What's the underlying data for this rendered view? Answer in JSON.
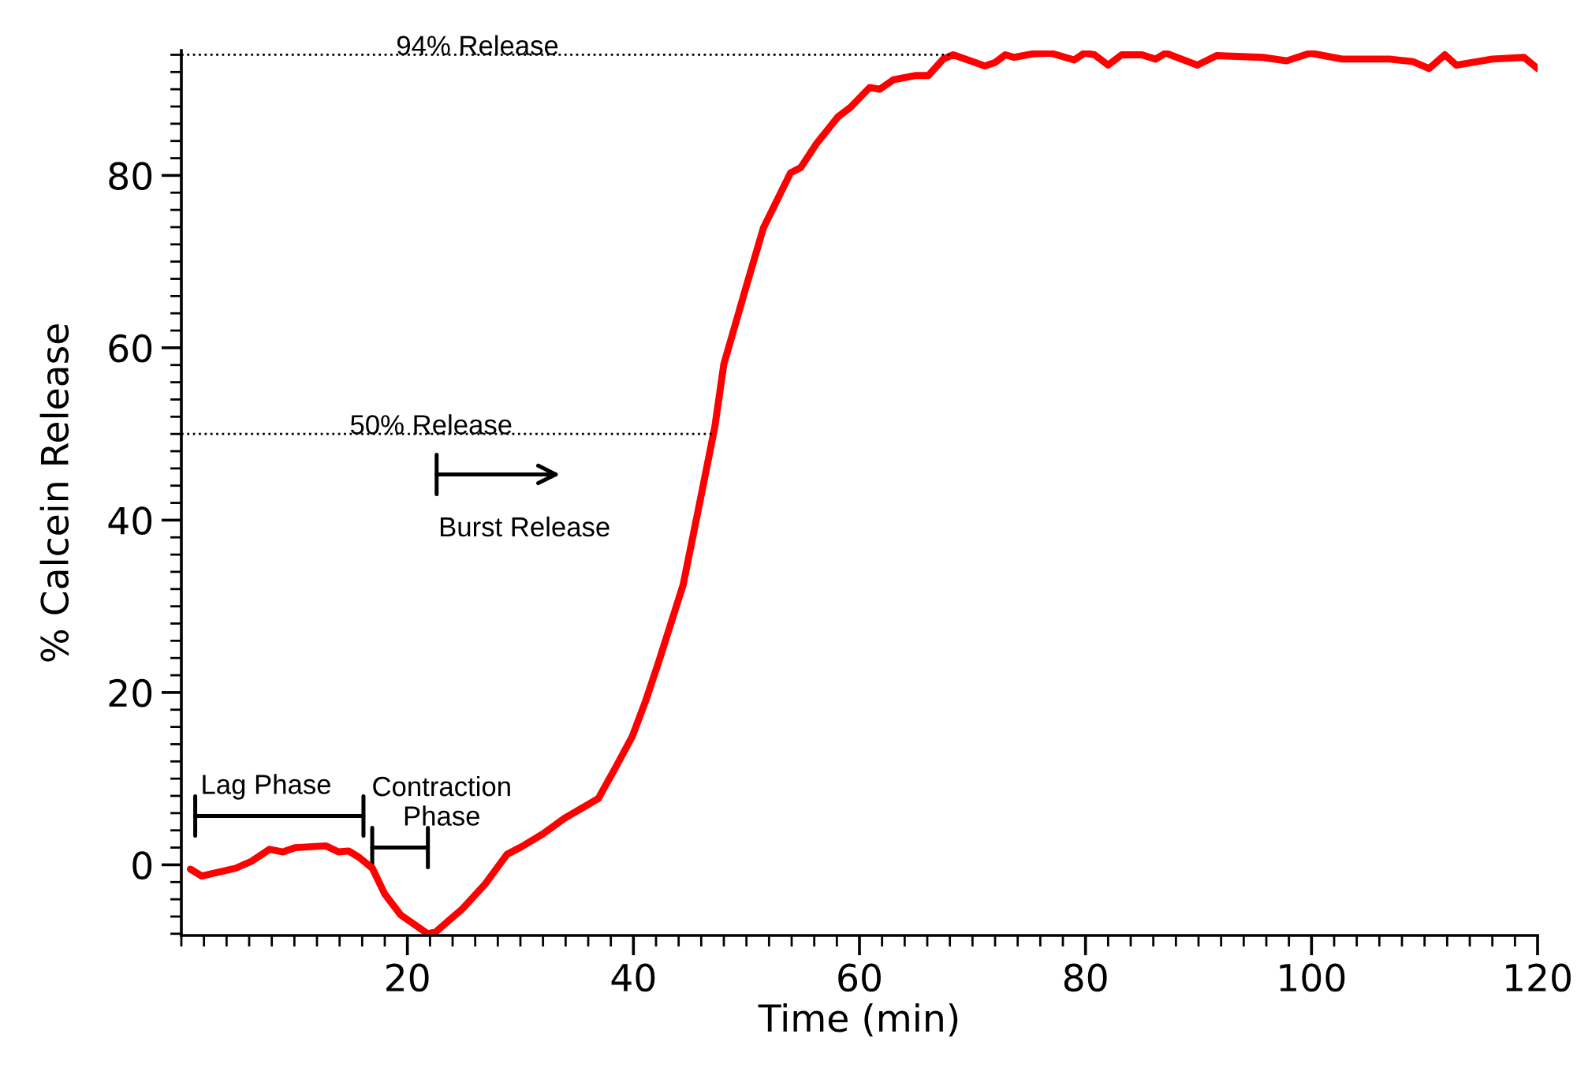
{
  "chart_data": {
    "type": "line",
    "xlabel": "Time (min)",
    "ylabel": "% Calcein Release",
    "xlim": [
      0,
      120
    ],
    "ylim": [
      -8.2,
      94.5
    ],
    "xticks": [
      20,
      40,
      60,
      80,
      100,
      120
    ],
    "yticks": [
      0,
      20,
      40,
      60,
      80
    ],
    "grid": false,
    "marker": "none",
    "line_style": "solid",
    "series": [
      {
        "color": "#ff0000",
        "x": [
          0.8,
          1.8,
          4.8,
          6.2,
          7.8,
          9.0,
          10.1,
          12.8,
          13.9,
          14.8,
          15.7,
          16.9,
          18.0,
          19.4,
          21.8,
          22.5,
          23.9,
          24.8,
          26.9,
          28.8,
          30.1,
          32.0,
          33.9,
          36.9,
          38.5,
          39.9,
          41.1,
          42.2,
          44.4,
          45.8,
          47.2,
          48.0,
          50.0,
          51.5,
          53.9,
          54.8,
          56.2,
          58.1,
          59.2,
          60.9,
          61.8,
          63.0,
          65.0,
          66.1,
          67.4,
          68.3,
          71.1,
          72.0,
          72.9,
          73.7,
          75.3,
          76.9,
          79.0,
          79.9,
          80.8,
          82.0,
          83.2,
          85.0,
          86.2,
          87.1,
          89.9,
          91.6,
          95.7,
          97.8,
          99.9,
          102.7,
          106.9,
          109.0,
          110.4,
          111.8,
          112.8,
          116.0,
          118.8,
          120.0
        ],
        "values": [
          -0.5,
          -1.3,
          -0.4,
          0.4,
          1.8,
          1.5,
          2.0,
          2.2,
          1.5,
          1.6,
          0.9,
          -0.4,
          -3.4,
          -5.8,
          -8.0,
          -7.8,
          -6.2,
          -5.2,
          -2.2,
          1.2,
          2.1,
          3.6,
          5.4,
          7.7,
          11.5,
          14.9,
          19.1,
          23.4,
          32.5,
          41.6,
          50.8,
          58.1,
          67.2,
          73.9,
          80.3,
          80.9,
          83.7,
          86.8,
          87.9,
          90.2,
          90.0,
          91.1,
          91.6,
          91.6,
          93.5,
          94.0,
          92.7,
          93.1,
          94.0,
          93.7,
          94.1,
          94.2,
          93.4,
          94.2,
          94.0,
          92.8,
          94.0,
          94.0,
          93.5,
          94.2,
          92.8,
          93.9,
          93.7,
          93.3,
          94.2,
          93.5,
          93.5,
          93.2,
          92.4,
          94.0,
          92.8,
          93.5,
          93.7,
          92.4
        ]
      }
    ],
    "ref_lines": [
      {
        "axis": "y",
        "value": 94,
        "color": "#000000",
        "line_style": "dotted"
      },
      {
        "axis": "y",
        "value": 50,
        "color": "#000000",
        "line_style": "dotted"
      }
    ],
    "annotations": [
      {
        "text": "94% Release",
        "x": 26.2,
        "y": 94.8
      },
      {
        "text": "50% Release",
        "x": 22.1,
        "y": 50.8
      },
      "Lag Phase",
      "Contraction\nPhase",
      "Burst Release"
    ]
  }
}
